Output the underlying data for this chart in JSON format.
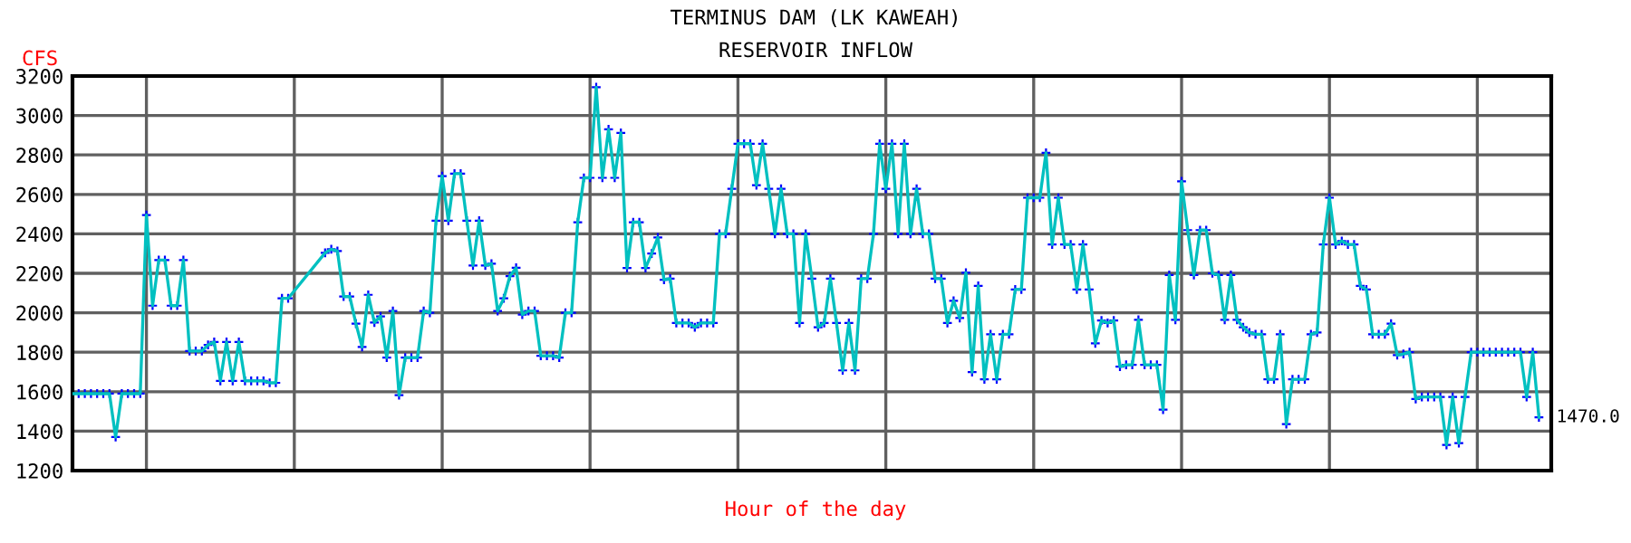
{
  "chart_data": {
    "type": "line",
    "title": "TERMINUS DAM (LK KAWEAH)",
    "subtitle": "RESERVOIR INFLOW",
    "xlabel": "Hour of the day",
    "ylabel": "CFS",
    "categories": [
      null,
      null,
      null,
      null,
      null,
      null,
      null,
      null,
      null,
      null,
      null,
      null,
      null,
      null,
      null,
      null,
      null,
      null,
      null,
      null,
      null,
      null,
      null,
      null,
      null,
      null,
      null,
      null,
      null,
      null,
      null,
      null,
      null,
      null,
      null,
      null,
      null,
      null,
      null,
      null,
      null,
      null,
      null,
      null,
      null,
      null,
      null,
      null,
      null,
      null,
      null,
      null,
      null,
      null,
      null,
      null,
      null,
      null,
      null,
      null,
      null,
      null,
      null,
      null,
      null,
      null,
      null,
      null,
      null,
      null,
      null,
      null,
      null,
      null,
      null,
      null,
      null,
      null,
      null,
      null,
      null,
      null,
      null,
      null,
      null,
      null,
      null,
      null,
      null,
      null,
      null,
      null,
      null,
      null,
      null,
      null,
      null,
      null,
      null,
      null,
      null,
      null,
      null,
      null,
      null,
      null,
      null,
      null,
      null,
      null,
      null,
      null,
      null,
      null,
      null,
      null,
      null,
      null,
      null,
      null,
      null,
      null,
      null,
      null,
      null,
      null,
      null,
      null,
      null,
      null,
      null,
      null,
      null,
      null,
      null,
      null,
      null,
      null,
      null,
      null,
      null,
      null,
      null,
      null,
      null,
      null,
      null,
      null,
      null,
      null,
      null,
      null,
      null,
      null,
      null,
      null,
      null,
      null,
      null,
      null,
      null,
      null,
      null,
      null,
      null,
      null,
      null,
      null,
      null,
      null,
      null,
      null,
      null,
      null,
      null,
      null,
      null,
      null,
      null,
      null,
      null,
      null,
      null,
      null,
      null,
      null,
      null,
      null,
      null,
      null,
      null,
      null,
      null,
      null,
      null,
      null,
      null,
      null,
      null,
      null,
      null,
      null,
      null,
      null,
      null,
      null,
      null,
      null,
      null,
      null,
      null,
      null,
      null,
      null,
      null,
      null,
      null,
      null,
      null,
      null,
      null,
      null,
      null,
      null,
      null,
      null,
      null,
      null,
      null,
      null,
      null,
      null,
      null,
      null,
      null,
      null,
      null,
      null,
      null
    ],
    "series": [
      {
        "color": "#00c0c0",
        "marker": "cross",
        "values": [
          1590,
          1590,
          1590,
          1590,
          1590,
          1590,
          1590,
          1370,
          1590,
          1590,
          1590,
          1590,
          2495,
          2036,
          2267,
          2267,
          2036,
          2036,
          2267,
          1806,
          1806,
          1806,
          1837,
          1852,
          1655,
          1852,
          1655,
          1852,
          1655,
          1655,
          1655,
          1655,
          1645,
          1645,
          2073,
          2073,
          null,
          null,
          null,
          null,
          null,
          2304,
          2322,
          2313,
          2082,
          2082,
          1945,
          1827,
          2091,
          1951,
          1982,
          1773,
          2009,
          1582,
          1773,
          1773,
          1773,
          2009,
          2000,
          2467,
          2693,
          2467,
          2705,
          2705,
          2467,
          2240,
          2467,
          2240,
          2249,
          2009,
          2073,
          2186,
          2228,
          1991,
          2009,
          2009,
          1782,
          1782,
          1782,
          1773,
          2000,
          2000,
          2459,
          2684,
          2684,
          3143,
          2684,
          2930,
          2684,
          2912,
          2227,
          2459,
          2459,
          2227,
          2300,
          2382,
          2167,
          2173,
          1948,
          1948,
          1948,
          1927,
          1948,
          1948,
          1948,
          2400,
          2400,
          2628,
          2857,
          2857,
          2857,
          2647,
          2857,
          2628,
          2400,
          2628,
          2400,
          2400,
          1948,
          2400,
          2173,
          1927,
          1948,
          2173,
          1948,
          1708,
          1948,
          1708,
          2173,
          2173,
          2400,
          2857,
          2628,
          2857,
          2400,
          2857,
          2400,
          2628,
          2400,
          2400,
          2173,
          2173,
          1948,
          2061,
          1973,
          2203,
          1699,
          2136,
          1663,
          1891,
          1663,
          1891,
          1891,
          2118,
          2118,
          2583,
          2583,
          2583,
          2811,
          2346,
          2583,
          2346,
          2346,
          2118,
          2346,
          2118,
          1845,
          1961,
          1948,
          1961,
          1727,
          1736,
          1736,
          1964,
          1736,
          1736,
          1736,
          1509,
          2191,
          1964,
          2666,
          2419,
          2191,
          2419,
          2419,
          2200,
          2191,
          1964,
          2191,
          1964,
          1927,
          1900,
          1891,
          1891,
          1663,
          1663,
          1891,
          1436,
          1663,
          1663,
          1663,
          1891,
          1900,
          2346,
          2583,
          2346,
          2364,
          2346,
          2346,
          2136,
          2118,
          1891,
          1891,
          1891,
          1945,
          1785,
          1791,
          1800,
          1563,
          1573,
          1573,
          1573,
          1573,
          1330,
          1573,
          1339,
          1573,
          1800,
          1800,
          1800,
          1800,
          1800,
          1800,
          1800,
          1800,
          1800,
          1573,
          1800,
          1470
        ]
      }
    ],
    "annotations": [
      "1470.0"
    ],
    "ylim": [
      1200,
      3200
    ],
    "yticks": [
      1200,
      1400,
      1600,
      1800,
      2000,
      2200,
      2400,
      2600,
      2800,
      3000,
      3200
    ],
    "grid": true,
    "tick_labels": "y"
  }
}
